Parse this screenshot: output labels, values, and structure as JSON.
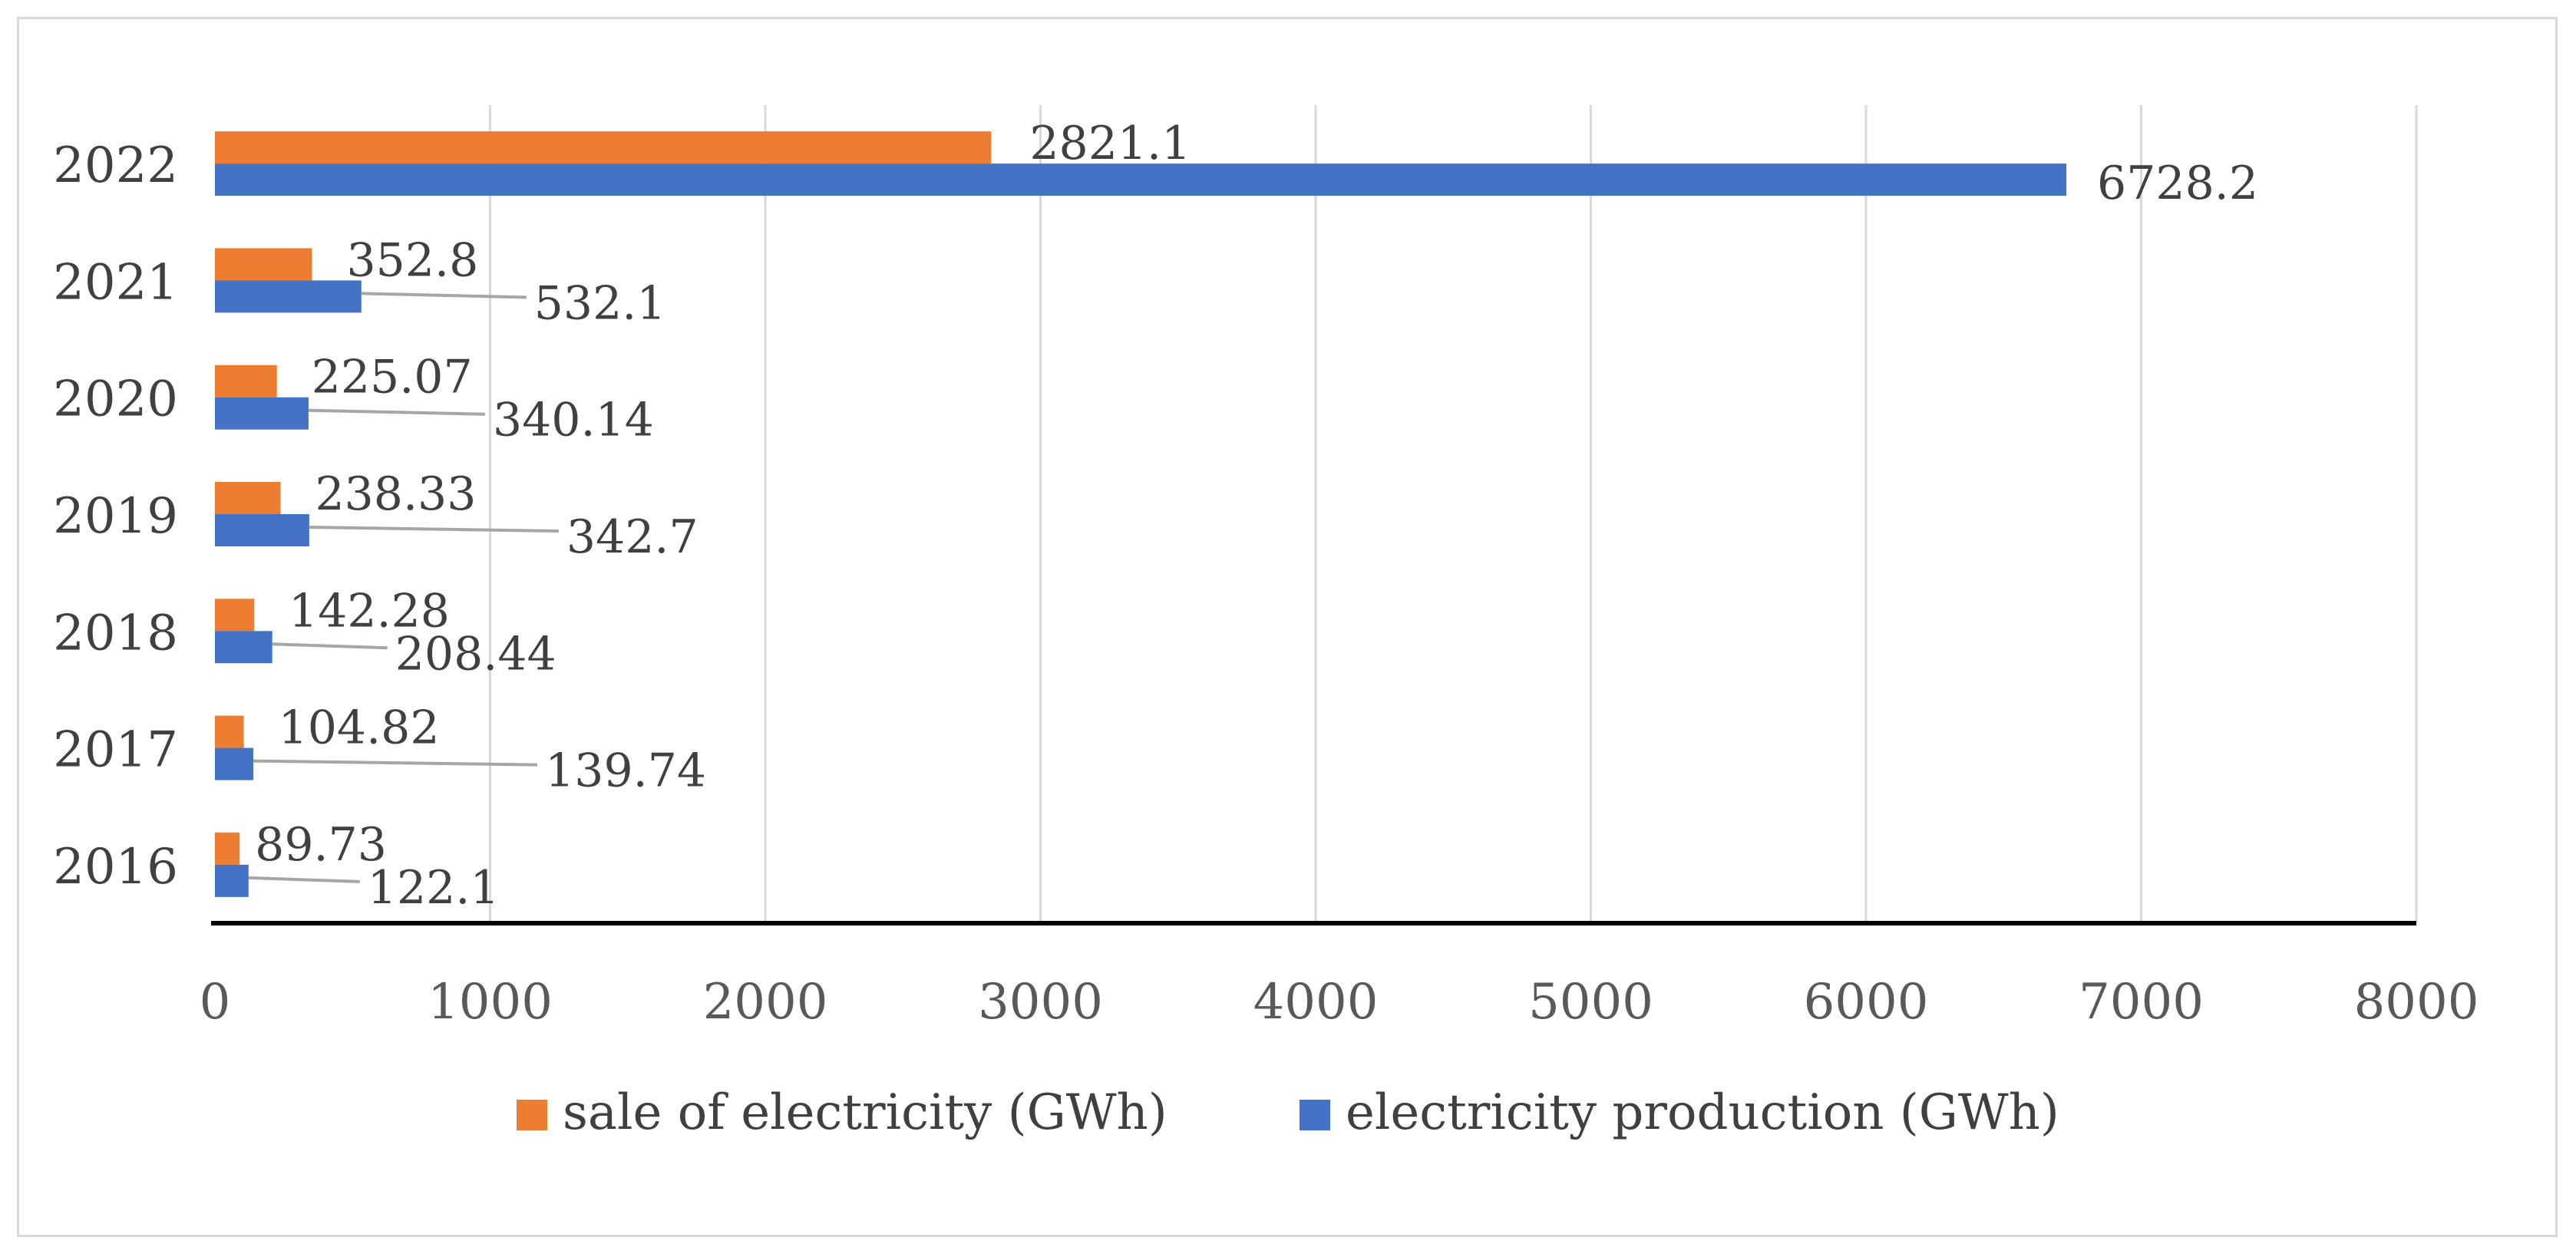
{
  "chart_data": {
    "type": "bar",
    "orientation": "horizontal",
    "title": "",
    "xlabel": "",
    "ylabel": "",
    "categories": [
      "2016",
      "2017",
      "2018",
      "2019",
      "2020",
      "2021",
      "2022"
    ],
    "series": [
      {
        "name": "sale of electricity (GWh)",
        "color": "#ED7D31",
        "values": [
          89.73,
          104.82,
          142.28,
          238.33,
          225.07,
          352.8,
          2821.1
        ],
        "labels": [
          "89.73",
          "104.82",
          "142.28",
          "238.33",
          "225.07",
          "352.8",
          "2821.1"
        ]
      },
      {
        "name": "electricity production (GWh)",
        "color": "#4472C4",
        "values": [
          122.1,
          139.74,
          208.44,
          342.7,
          340.14,
          532.1,
          6728.2
        ],
        "labels": [
          "122.1",
          "139.74",
          "208.44",
          "342.7",
          "340.14",
          "532.1",
          "6728.2"
        ]
      }
    ],
    "xlim": [
      0,
      8000
    ],
    "xticks": [
      "0",
      "1000",
      "2000",
      "3000",
      "4000",
      "5000",
      "6000",
      "7000",
      "8000"
    ],
    "grid": true,
    "legend_position": "bottom",
    "gridline_color": "#d9d9d9",
    "axis_color": "#000000",
    "leader_color": "#a6a6a6"
  }
}
